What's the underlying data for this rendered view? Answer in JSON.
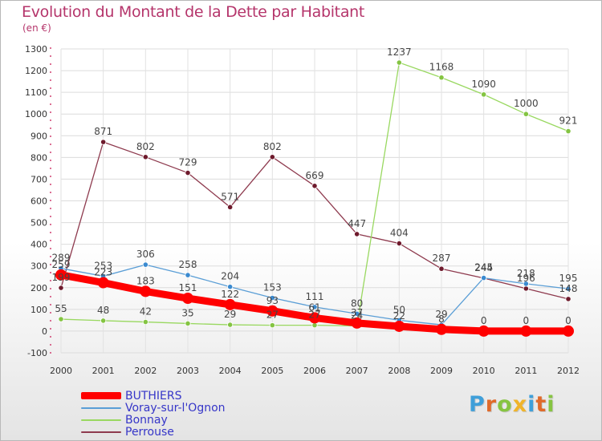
{
  "title": "Evolution du Montant de la Dette par Habitant",
  "subtitle": "(en €)",
  "brand": {
    "text": "Proxiti",
    "letter_colors": [
      "#3f9fd9",
      "#e06a2a",
      "#86c441",
      "#f0b42a",
      "#3f9fd9",
      "#e06a2a",
      "#86c441"
    ]
  },
  "chart_data": {
    "type": "line",
    "title": "Evolution du Montant de la Dette par Habitant",
    "subtitle": "(en €)",
    "x": [
      "2000",
      "2001",
      "2002",
      "2003",
      "2004",
      "2005",
      "2006",
      "2007",
      "2008",
      "2009",
      "2010",
      "2011",
      "2012"
    ],
    "ylim": [
      -100,
      1300
    ],
    "yticks": [
      -100,
      0,
      100,
      200,
      300,
      400,
      500,
      600,
      700,
      800,
      900,
      1000,
      1100,
      1200,
      1300
    ],
    "grid": true,
    "legend_position": "bottom-left",
    "series": [
      {
        "name": "BUTHIERS",
        "color": "#ff0000",
        "marker": "#ff0000",
        "values": [
          259,
          223,
          183,
          151,
          122,
          93,
          61,
          37,
          22,
          8,
          0,
          0,
          0
        ]
      },
      {
        "name": "Voray-sur-l'Ognon",
        "color": "#5a9ed6",
        "marker": "#3a8ad0",
        "values": [
          289,
          253,
          306,
          258,
          204,
          153,
          111,
          80,
          50,
          29,
          245,
          218,
          195
        ]
      },
      {
        "name": "Bonnay",
        "color": "#99d860",
        "marker": "#84c442",
        "values": [
          55,
          48,
          42,
          35,
          29,
          27,
          27,
          24,
          1237,
          1168,
          1090,
          1000,
          921
        ]
      },
      {
        "name": "Perrouse",
        "color": "#8e3a4e",
        "marker": "#6e1a2c",
        "values": [
          199,
          871,
          802,
          729,
          571,
          802,
          669,
          447,
          404,
          287,
          244,
          196,
          148
        ]
      }
    ]
  }
}
